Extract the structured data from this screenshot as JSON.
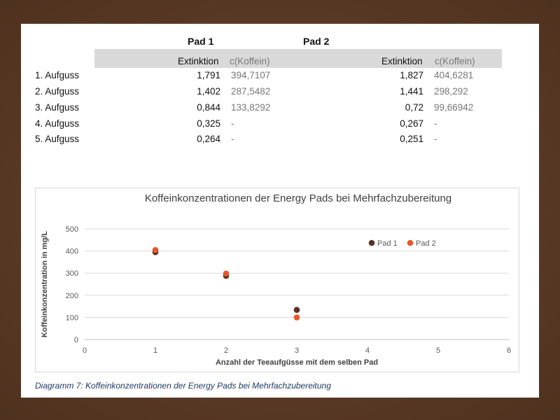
{
  "table": {
    "pad1_header": "Pad 1",
    "pad2_header": "Pad 2",
    "col_extinktion": "Extinktion",
    "col_koffein": "c(Koffein)",
    "rows": [
      {
        "label": "1. Aufguss",
        "p1_ext": "1,791",
        "p1_c": "394,7107",
        "p2_ext": "1,827",
        "p2_c": "404,6281"
      },
      {
        "label": "2. Aufguss",
        "p1_ext": "1,402",
        "p1_c": "287,5482",
        "p2_ext": "1,441",
        "p2_c": "298,292"
      },
      {
        "label": "3. Aufguss",
        "p1_ext": "0,844",
        "p1_c": "133,8292",
        "p2_ext": "0,72",
        "p2_c": "99,66942"
      },
      {
        "label": "4. Aufguss",
        "p1_ext": "0,325",
        "p1_c": "-",
        "p2_ext": "0,267",
        "p2_c": "-"
      },
      {
        "label": "5. Aufguss",
        "p1_ext": "0,264",
        "p1_c": "-",
        "p2_ext": "0,251",
        "p2_c": "-"
      }
    ]
  },
  "caption": "Diagramm 7: Koffeinkonzentrationen der Energy Pads bei Mehrfachzubereitung",
  "colors": {
    "pad1": "#5a3320",
    "pad2": "#e8572a",
    "grid": "#d9d9d9",
    "axis_text": "#595959"
  },
  "chart_data": {
    "type": "scatter",
    "title": "Koffeinkonzentrationen der Energy Pads bei Mehrfachzubereitung",
    "xlabel": "Anzahl der Teeaufgüsse mit dem selben Pad",
    "ylabel": "Koffeinkonzentration in mg/L",
    "xlim": [
      0,
      6
    ],
    "ylim": [
      0,
      500
    ],
    "xticks": [
      0,
      1,
      2,
      3,
      4,
      5,
      6
    ],
    "yticks": [
      0,
      100,
      200,
      300,
      400,
      500
    ],
    "grid": true,
    "legend_position": "top-right",
    "series": [
      {
        "name": "Pad 1",
        "color": "#5a3320",
        "x": [
          1,
          2,
          3
        ],
        "y": [
          394.7107,
          287.5482,
          133.8292
        ]
      },
      {
        "name": "Pad 2",
        "color": "#e8572a",
        "x": [
          1,
          2,
          3
        ],
        "y": [
          404.6281,
          298.292,
          99.66942
        ]
      }
    ]
  }
}
